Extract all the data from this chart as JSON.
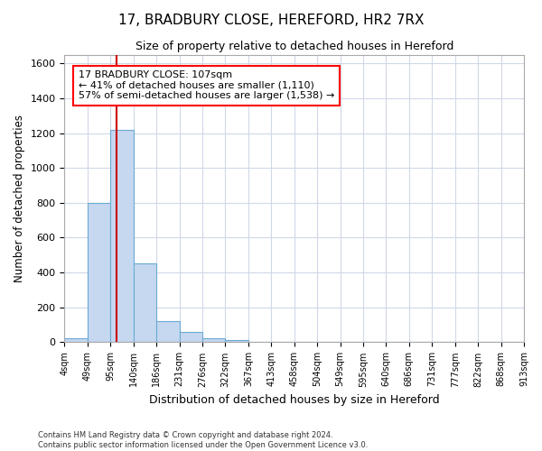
{
  "title": "17, BRADBURY CLOSE, HEREFORD, HR2 7RX",
  "subtitle": "Size of property relative to detached houses in Hereford",
  "xlabel": "Distribution of detached houses by size in Hereford",
  "ylabel": "Number of detached properties",
  "bar_heights": [
    25,
    800,
    1220,
    450,
    120,
    60,
    25,
    15,
    0,
    0,
    0,
    0,
    0,
    0,
    0,
    0,
    0,
    0,
    0,
    0
  ],
  "tick_labels": [
    "4sqm",
    "49sqm",
    "95sqm",
    "140sqm",
    "186sqm",
    "231sqm",
    "276sqm",
    "322sqm",
    "367sqm",
    "413sqm",
    "458sqm",
    "504sqm",
    "549sqm",
    "595sqm",
    "640sqm",
    "686sqm",
    "731sqm",
    "777sqm",
    "822sqm",
    "868sqm",
    "913sqm"
  ],
  "n_bars": 20,
  "bar_color": "#c5d8f0",
  "bar_edge_color": "#6aaad4",
  "grid_color": "#d0d8e8",
  "bg_color": "#ffffff",
  "fig_bg_color": "#ffffff",
  "vline_color": "#cc0000",
  "vline_bin": 2,
  "annotation_text": "17 BRADBURY CLOSE: 107sqm\n← 41% of detached houses are smaller (1,110)\n57% of semi-detached houses are larger (1,538) →",
  "ylim": [
    0,
    1650
  ],
  "yticks": [
    0,
    200,
    400,
    600,
    800,
    1000,
    1200,
    1400,
    1600
  ],
  "footer": "Contains HM Land Registry data © Crown copyright and database right 2024.\nContains public sector information licensed under the Open Government Licence v3.0."
}
